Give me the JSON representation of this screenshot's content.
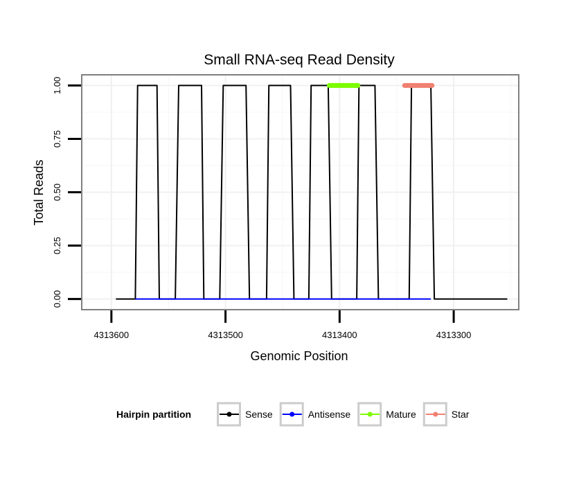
{
  "chart_data": {
    "type": "line",
    "title": "Small RNA-seq Read Density",
    "xlabel": "Genomic Position",
    "ylabel": "Total Reads",
    "x_reversed": true,
    "xlim": [
      4313626,
      4313243
    ],
    "ylim": [
      -0.05,
      1.05
    ],
    "x_ticks": [
      4313600,
      4313500,
      4313400,
      4313300
    ],
    "x_tick_labels": [
      "4313600",
      "4313500",
      "4313400",
      "4313300"
    ],
    "y_ticks": [
      0,
      0.25,
      0.5,
      0.75,
      1.0
    ],
    "y_tick_labels": [
      "0.00",
      "0.25",
      "0.50",
      "0.75",
      "1.00"
    ],
    "grid": true,
    "series": [
      {
        "name": "Sense",
        "color": "#000000",
        "x": [
          4313596,
          4313579,
          4313577,
          4313560,
          4313558,
          4313544,
          4313541,
          4313521,
          4313519,
          4313505,
          4313502,
          4313482,
          4313479,
          4313464,
          4313462,
          4313443,
          4313440,
          4313427,
          4313425,
          4313410,
          4313407,
          4313385,
          4313383,
          4313369,
          4313366,
          4313339,
          4313337,
          4313320,
          4313317,
          4313253
        ],
        "y": [
          0,
          0,
          1,
          1,
          0,
          0,
          1,
          1,
          0,
          0,
          1,
          1,
          0,
          0,
          1,
          1,
          0,
          0,
          1,
          1,
          0,
          0,
          1,
          1,
          0,
          0,
          1,
          1,
          0,
          0
        ]
      },
      {
        "name": "Antisense",
        "color": "#0000ff",
        "x": [
          4313579,
          4313320
        ],
        "y": [
          0,
          0
        ]
      },
      {
        "name": "Mature",
        "color": "#7cfc00",
        "x": [
          4313409,
          4313384
        ],
        "y": [
          1,
          1
        ]
      },
      {
        "name": "Star",
        "color": "#f08070",
        "x": [
          4313343,
          4313319
        ],
        "y": [
          1,
          1
        ]
      }
    ],
    "legend": {
      "title": "Hairpin partition",
      "position": "bottom",
      "entries": [
        {
          "label": "Sense",
          "color": "#000000"
        },
        {
          "label": "Antisense",
          "color": "#0000ff"
        },
        {
          "label": "Mature",
          "color": "#7cfc00"
        },
        {
          "label": "Star",
          "color": "#f08070"
        }
      ]
    }
  }
}
